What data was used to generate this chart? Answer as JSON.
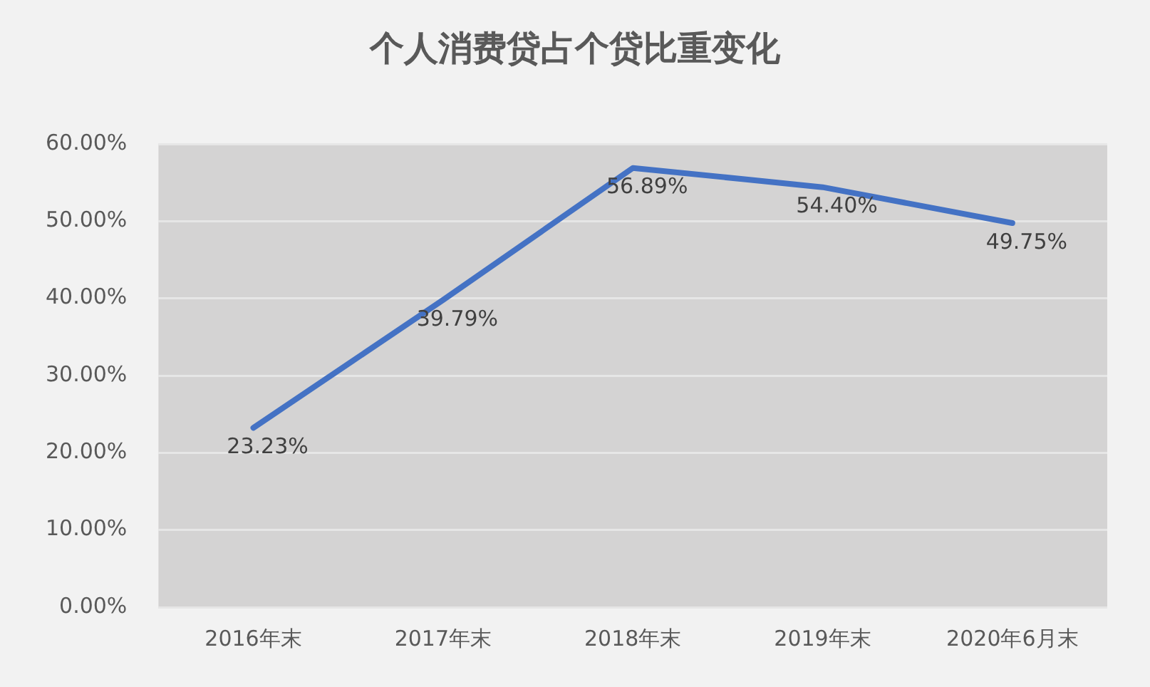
{
  "chart_data": {
    "type": "line",
    "title": "个人消费贷占个贷比重变化",
    "categories": [
      "2016年末",
      "2017年末",
      "2018年末",
      "2019年末",
      "2020年6月末"
    ],
    "series": [
      {
        "color": "#4472c4",
        "values": [
          23.23,
          39.79,
          56.89,
          54.4,
          49.75
        ],
        "value_labels": [
          "23.23%",
          "39.79%",
          "56.89%",
          "54.40%",
          "49.75%"
        ]
      }
    ],
    "ylim": [
      0,
      60
    ],
    "yticks": [
      {
        "value": 0,
        "label": "0.00%"
      },
      {
        "value": 10,
        "label": "10.00%"
      },
      {
        "value": 20,
        "label": "20.00%"
      },
      {
        "value": 30,
        "label": "30.00%"
      },
      {
        "value": 40,
        "label": "40.00%"
      },
      {
        "value": 50,
        "label": "50.00%"
      },
      {
        "value": 60,
        "label": "60.00%"
      }
    ],
    "grid": "y",
    "legend": false,
    "marker": "none",
    "line_style": "solid"
  }
}
